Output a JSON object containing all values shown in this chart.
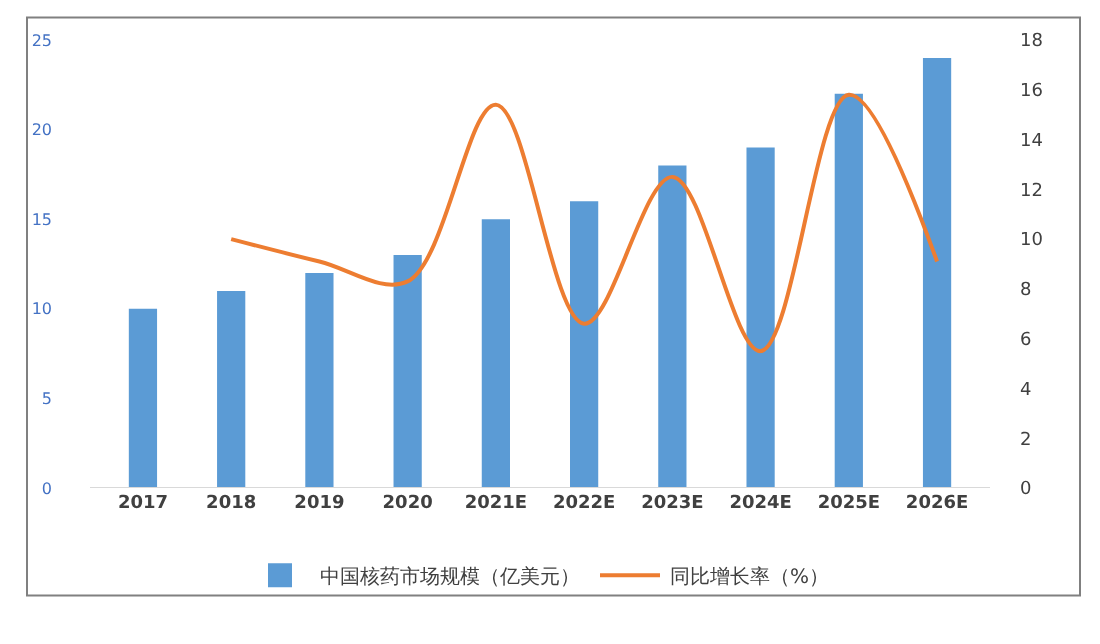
{
  "chart_data": {
    "type": "bar",
    "categories": [
      "2017",
      "2018",
      "2019",
      "2020",
      "2021E",
      "2022E",
      "2023E",
      "2024E",
      "2025E",
      "2026E"
    ],
    "series": [
      {
        "name": "中国核药市场规模（亿美元）",
        "color": "#5b9bd5",
        "values": [
          10,
          11,
          12,
          13,
          15,
          16,
          18,
          19,
          22,
          24
        ]
      },
      {
        "name": "同比增长率（%）",
        "type": "line",
        "axis": "y2",
        "color": "#ed7d31",
        "values": [
          null,
          10,
          9.1,
          8.3,
          15.4,
          6.6,
          12.5,
          5.5,
          15.8,
          9.1
        ]
      }
    ],
    "ylim": [
      0,
      25
    ],
    "yticks": [
      0,
      5,
      10,
      15,
      20,
      25
    ],
    "y2lim": [
      0,
      18
    ],
    "y2ticks": [
      0,
      2,
      4,
      6,
      8,
      10,
      12,
      14,
      16,
      18
    ],
    "grid": false,
    "legend": "bottom",
    "marker": "none",
    "line_style": "solid"
  }
}
